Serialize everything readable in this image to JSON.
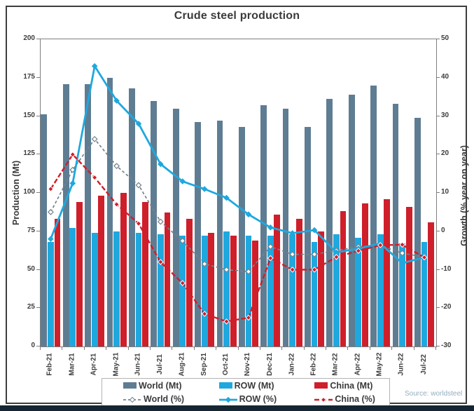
{
  "title": "Crude steel production",
  "source": "Source: worldsteel",
  "colors": {
    "world_bar": "#5e7d93",
    "row_bar": "#1fa8de",
    "china_bar": "#ce1f2b",
    "world_line": "#75838e",
    "row_line": "#1fa8de",
    "china_line": "#ce1f2b",
    "plot_border": "#7f7f7f",
    "bottom_band": "#152632",
    "source_text": "#93aebf"
  },
  "y_left": {
    "label": "Production (Mt)",
    "ticks": [
      0,
      25,
      50,
      75,
      100,
      125,
      150,
      175,
      200
    ],
    "min": 0,
    "max": 200
  },
  "y_right": {
    "label": "Growth (% year on year)",
    "ticks": [
      50,
      40,
      30,
      20,
      10,
      0,
      -10,
      -20,
      -30
    ],
    "min": -30,
    "max": 50
  },
  "chart_data": {
    "type": "bar",
    "subtype": "grouped bars + yoy growth lines on secondary axis",
    "title": "Crude steel production",
    "xlabel": "",
    "ylabel_left": "Production (Mt)",
    "ylabel_right": "Growth (% year on year)",
    "ylim_left": [
      0,
      200
    ],
    "ylim_right": [
      -30,
      50
    ],
    "grid": false,
    "legend_position": "bottom",
    "categories": [
      "Feb-21",
      "Mar-21",
      "Apr-21",
      "May-21",
      "Jun-21",
      "Jul-21",
      "Aug-21",
      "Sep-21",
      "Oct-21",
      "Nov-21",
      "Dec-21",
      "Jan-22",
      "Feb-22",
      "Mar-22",
      "Apr-22",
      "May-22",
      "Jun-22",
      "Jul-22"
    ],
    "bar_series": [
      {
        "name": "World (Mt)",
        "color": "#5e7d93",
        "values": [
          151,
          171,
          171,
          175,
          168,
          160,
          155,
          146,
          147,
          143,
          157,
          155,
          143,
          161,
          164,
          170,
          158,
          149
        ]
      },
      {
        "name": "ROW (Mt)",
        "color": "#1fa8de",
        "values": [
          68,
          77,
          74,
          75,
          74,
          73,
          72,
          72,
          75,
          72,
          72,
          73,
          68,
          73,
          71,
          73,
          67,
          68
        ]
      },
      {
        "name": "China (Mt)",
        "color": "#ce1f2b",
        "values": [
          83,
          94,
          98,
          100,
          94,
          87,
          83,
          74,
          72,
          69,
          86,
          83,
          75,
          88,
          93,
          96,
          91,
          81
        ]
      }
    ],
    "line_series": [
      {
        "name": "World (%)",
        "color": "#75838e",
        "style": "dashed",
        "marker": "open-diamond",
        "values": [
          5,
          16,
          24,
          17,
          12,
          2.5,
          -2.5,
          -8.5,
          -10,
          -10.5,
          -4,
          -6,
          -6,
          -5,
          -4,
          -3.7,
          -5.7,
          -6.7
        ]
      },
      {
        "name": "ROW (%)",
        "color": "#1fa8de",
        "style": "solid",
        "marker": "diamond",
        "values": [
          -2,
          12.5,
          43,
          34,
          28,
          17.5,
          13,
          11,
          8.7,
          4.4,
          1,
          -0.5,
          0.3,
          -5.5,
          -4.5,
          -3.2,
          -8.3,
          -6.8
        ]
      },
      {
        "name": "China (%)",
        "color": "#ce1f2b",
        "style": "dashed",
        "marker": "diamond-white-edge",
        "values": [
          11,
          20,
          14,
          7,
          2,
          -8,
          -13.5,
          -21.5,
          -23.5,
          -22.5,
          -7,
          -10,
          -10,
          -6.7,
          -5.1,
          -3.6,
          -3.5,
          -6.8
        ]
      }
    ]
  }
}
